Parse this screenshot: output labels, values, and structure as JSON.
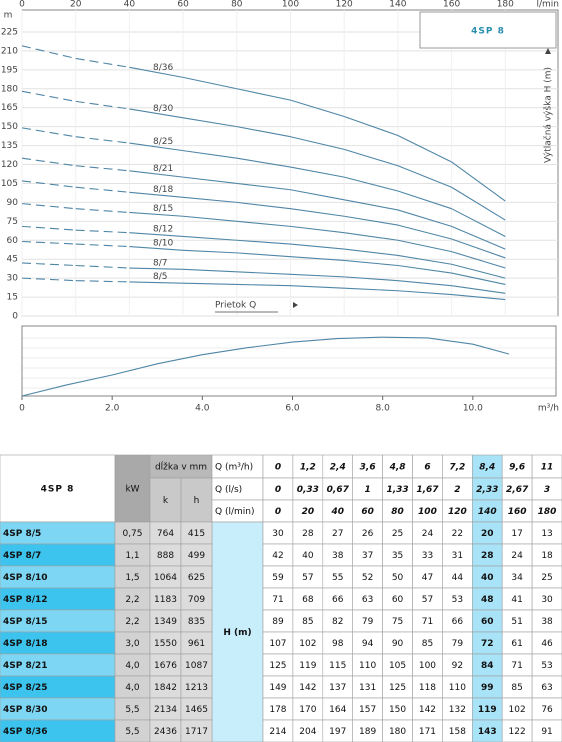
{
  "chart_data": [
    {
      "type": "line",
      "logo": "4SP 8",
      "x_axis_title": "Prietok Q",
      "y_axis_title": "Výtlačná výška H (m)",
      "x_unit": "l/min",
      "y_unit": "m",
      "color": "#4f86a6",
      "grid": true,
      "x": [
        0,
        20,
        40,
        60,
        80,
        100,
        120,
        140,
        160,
        180
      ],
      "xlim": [
        0,
        200
      ],
      "xticks": [
        0,
        20,
        40,
        60,
        80,
        100,
        120,
        140,
        160,
        180
      ],
      "ylim": [
        0,
        240
      ],
      "yticks": [
        0,
        15,
        30,
        45,
        60,
        75,
        90,
        105,
        120,
        135,
        150,
        165,
        180,
        195,
        210,
        225
      ],
      "series": [
        {
          "name": "8/36",
          "values": [
            214,
            204,
            197,
            189,
            180,
            171,
            158,
            143,
            122,
            91
          ]
        },
        {
          "name": "8/30",
          "values": [
            178,
            170,
            164,
            157,
            150,
            142,
            132,
            119,
            102,
            76
          ]
        },
        {
          "name": "8/25",
          "values": [
            149,
            142,
            137,
            131,
            125,
            118,
            110,
            99,
            85,
            63
          ]
        },
        {
          "name": "8/21",
          "values": [
            125,
            119,
            115,
            110,
            105,
            100,
            92,
            84,
            71,
            53
          ]
        },
        {
          "name": "8/18",
          "values": [
            107,
            102,
            98,
            94,
            90,
            85,
            79,
            72,
            61,
            46
          ]
        },
        {
          "name": "8/15",
          "values": [
            89,
            85,
            82,
            79,
            75,
            71,
            66,
            60,
            51,
            38
          ]
        },
        {
          "name": "8/12",
          "values": [
            71,
            68,
            66,
            63,
            60,
            57,
            53,
            48,
            41,
            30
          ]
        },
        {
          "name": "8/10",
          "values": [
            59,
            57,
            55,
            52,
            50,
            47,
            44,
            40,
            34,
            25
          ]
        },
        {
          "name": "8/7",
          "values": [
            42,
            40,
            38,
            37,
            35,
            33,
            31,
            28,
            24,
            18
          ]
        },
        {
          "name": "8/5",
          "values": [
            30,
            28,
            27,
            26,
            25,
            24,
            22,
            20,
            17,
            13
          ]
        }
      ]
    },
    {
      "type": "line",
      "x_unit": "m³/h",
      "color": "#4f86a6",
      "x": [
        0,
        1,
        2,
        3,
        4,
        5,
        6,
        7,
        8,
        9,
        10,
        10.8
      ],
      "values": [
        0,
        16,
        30,
        46,
        59,
        69,
        77,
        82,
        84,
        83,
        74,
        60
      ],
      "xlim": [
        0,
        11.8
      ],
      "ylim": [
        0,
        100
      ],
      "xticks": [
        0,
        {
          "value": 2,
          "label": "2.0"
        },
        {
          "value": 4,
          "label": "4.0"
        },
        {
          "value": 6,
          "label": "6.0"
        },
        {
          "value": 8,
          "label": "8.0"
        },
        {
          "value": 10,
          "label": "10.0"
        }
      ]
    }
  ],
  "table": {
    "title": "4SP 8",
    "kw_header": "kW",
    "length_header": "dĺžka v mm",
    "k_header": "k",
    "h_header": "h",
    "head_label": "H (m)",
    "q_headers": [
      {
        "label": "Q (m³/h)",
        "values": [
          "0",
          "1,2",
          "2,4",
          "3,6",
          "4,8",
          "6",
          "7,2",
          "8,4",
          "9,6",
          "11"
        ]
      },
      {
        "label": "Q (l/s)",
        "values": [
          "0",
          "0,33",
          "0,67",
          "1",
          "1,33",
          "1,67",
          "2",
          "2,33",
          "2,67",
          "3"
        ]
      },
      {
        "label": "Q (l/min)",
        "values": [
          "0",
          "20",
          "40",
          "60",
          "80",
          "100",
          "120",
          "140",
          "160",
          "180"
        ]
      }
    ],
    "rows": [
      {
        "model": "4SP 8/5",
        "kw": "0,75",
        "k": "764",
        "h": "415",
        "values": [
          "30",
          "28",
          "27",
          "26",
          "25",
          "24",
          "22",
          "20",
          "17",
          "13"
        ]
      },
      {
        "model": "4SP 8/7",
        "kw": "1,1",
        "k": "888",
        "h": "499",
        "values": [
          "42",
          "40",
          "38",
          "37",
          "35",
          "33",
          "31",
          "28",
          "24",
          "18"
        ]
      },
      {
        "model": "4SP 8/10",
        "kw": "1,5",
        "k": "1064",
        "h": "625",
        "values": [
          "59",
          "57",
          "55",
          "52",
          "50",
          "47",
          "44",
          "40",
          "34",
          "25"
        ]
      },
      {
        "model": "4SP 8/12",
        "kw": "2,2",
        "k": "1183",
        "h": "709",
        "values": [
          "71",
          "68",
          "66",
          "63",
          "60",
          "57",
          "53",
          "48",
          "41",
          "30"
        ]
      },
      {
        "model": "4SP 8/15",
        "kw": "2,2",
        "k": "1349",
        "h": "835",
        "values": [
          "89",
          "85",
          "82",
          "79",
          "75",
          "71",
          "66",
          "60",
          "51",
          "38"
        ]
      },
      {
        "model": "4SP 8/18",
        "kw": "3,0",
        "k": "1550",
        "h": "961",
        "values": [
          "107",
          "102",
          "98",
          "94",
          "90",
          "85",
          "79",
          "72",
          "61",
          "46"
        ]
      },
      {
        "model": "4SP 8/21",
        "kw": "4,0",
        "k": "1676",
        "h": "1087",
        "values": [
          "125",
          "119",
          "115",
          "110",
          "105",
          "100",
          "92",
          "84",
          "71",
          "53"
        ]
      },
      {
        "model": "4SP 8/25",
        "kw": "4,0",
        "k": "1842",
        "h": "1213",
        "values": [
          "149",
          "142",
          "137",
          "131",
          "125",
          "118",
          "110",
          "99",
          "85",
          "63"
        ]
      },
      {
        "model": "4SP 8/30",
        "kw": "5,5",
        "k": "2134",
        "h": "1465",
        "values": [
          "178",
          "170",
          "164",
          "157",
          "150",
          "142",
          "132",
          "119",
          "102",
          "76"
        ]
      },
      {
        "model": "4SP 8/36",
        "kw": "5,5",
        "k": "2436",
        "h": "1717",
        "values": [
          "214",
          "204",
          "197",
          "189",
          "180",
          "171",
          "158",
          "143",
          "122",
          "91"
        ]
      }
    ]
  }
}
